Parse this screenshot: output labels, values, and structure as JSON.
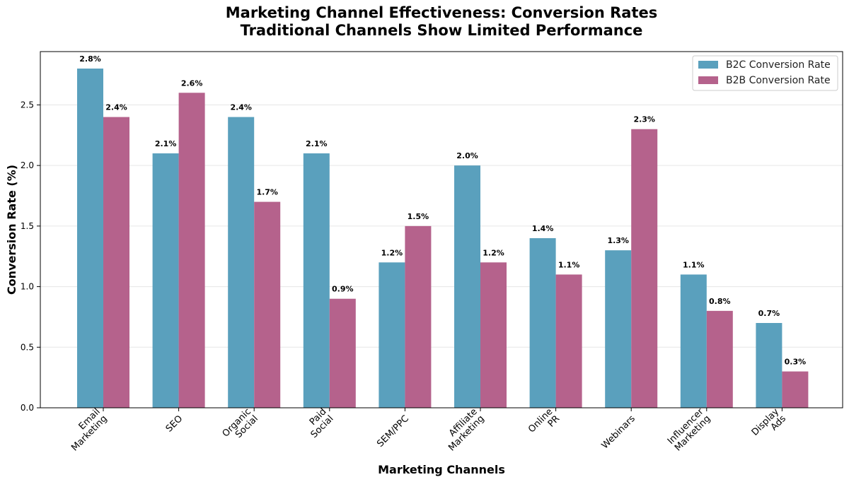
{
  "chart_data": {
    "type": "bar",
    "title": "Marketing Channel Effectiveness: Conversion Rates",
    "subtitle": "Traditional Channels Show Limited Performance",
    "xlabel": "Marketing Channels",
    "ylabel": "Conversion Rate (%)",
    "ylim": [
      0,
      2.94
    ],
    "yticks": [
      "0.0",
      "0.5",
      "1.0",
      "1.5",
      "2.0",
      "2.5"
    ],
    "grid": "horizontal",
    "legend_position": "top-right",
    "categories": [
      [
        "Email",
        "Marketing"
      ],
      [
        "SEO"
      ],
      [
        "Organic",
        "Social"
      ],
      [
        "Paid",
        "Social"
      ],
      [
        "SEM/PPC"
      ],
      [
        "Affiliate",
        "Marketing"
      ],
      [
        "Online",
        "PR"
      ],
      [
        "Webinars"
      ],
      [
        "Influencer",
        "Marketing"
      ],
      [
        "Display",
        "Ads"
      ]
    ],
    "series": [
      {
        "name": "B2C Conversion Rate",
        "color": "#5aa0bd",
        "values": [
          2.8,
          2.1,
          2.4,
          2.1,
          1.2,
          2.0,
          1.4,
          1.3,
          1.1,
          0.7
        ],
        "labels": [
          "2.8%",
          "2.1%",
          "2.4%",
          "2.1%",
          "1.2%",
          "2.0%",
          "1.4%",
          "1.3%",
          "1.1%",
          "0.7%"
        ]
      },
      {
        "name": "B2B Conversion Rate",
        "color": "#b5628c",
        "values": [
          2.4,
          2.6,
          1.7,
          0.9,
          1.5,
          1.2,
          1.1,
          2.3,
          0.8,
          0.3
        ],
        "labels": [
          "2.4%",
          "2.6%",
          "1.7%",
          "0.9%",
          "1.5%",
          "1.2%",
          "1.1%",
          "2.3%",
          "0.8%",
          "0.3%"
        ]
      }
    ]
  }
}
